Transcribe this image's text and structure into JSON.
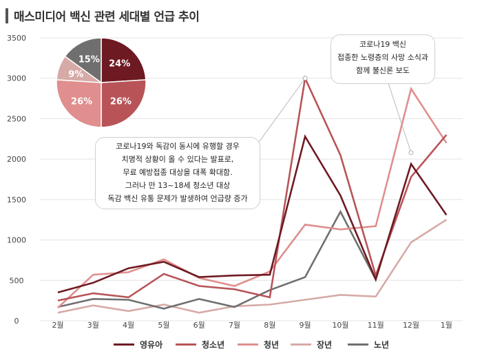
{
  "title": "매스미디어 백신 관련  세대별 언급 추이",
  "colors": {
    "영유아": "#6e1a22",
    "청소년": "#b85458",
    "청년": "#e08e8e",
    "장년": "#d6aaa7",
    "노년": "#6f6f6f"
  },
  "chart_data": {
    "type": "line",
    "categories": [
      "2월",
      "3월",
      "4월",
      "5월",
      "6월",
      "7월",
      "8월",
      "9월",
      "10월",
      "11월",
      "12월",
      "1월"
    ],
    "y_ticks": [
      "0",
      "500",
      "1000",
      "1500",
      "2000",
      "2500",
      "3000",
      "3500"
    ],
    "ylim": [
      0,
      3500
    ],
    "grid": true,
    "legend_position": "bottom",
    "series": [
      {
        "name": "영유아",
        "values": [
          350,
          470,
          650,
          730,
          540,
          560,
          570,
          2280,
          1550,
          510,
          1940,
          1310
        ]
      },
      {
        "name": "청소년",
        "values": [
          250,
          340,
          290,
          580,
          430,
          390,
          290,
          3000,
          2050,
          560,
          1780,
          2300
        ]
      },
      {
        "name": "청년",
        "values": [
          160,
          570,
          600,
          760,
          530,
          430,
          610,
          1190,
          1130,
          1170,
          2870,
          2200
        ]
      },
      {
        "name": "장년",
        "values": [
          100,
          190,
          120,
          200,
          100,
          180,
          200,
          260,
          320,
          300,
          970,
          1250
        ]
      },
      {
        "name": "노년",
        "values": [
          170,
          270,
          260,
          150,
          270,
          170,
          380,
          540,
          1350,
          510,
          null,
          null
        ]
      }
    ]
  },
  "pie": {
    "type": "pie",
    "slices": [
      {
        "label": "24%",
        "value": 24,
        "color": "#6e1a22"
      },
      {
        "label": "26%",
        "value": 26,
        "color": "#b85458"
      },
      {
        "label": "26%",
        "value": 26,
        "color": "#e08e8e"
      },
      {
        "label": "9%",
        "value": 9,
        "color": "#d6aaa7"
      },
      {
        "label": "15%",
        "value": 15,
        "color": "#6f6f6f"
      }
    ]
  },
  "callouts": {
    "c1": [
      "코로나19와 독감이 동시에 유행할 경우",
      "치명적 상황이 올 수 있다는 발표로,",
      "무료 예방접종 대상을 대폭 확대함.",
      "그러나 만 13~18세 청소년 대상",
      "독감 백신 유통 문제가 발생하여 언급량 증가"
    ],
    "c2": [
      "코로나19 백신",
      "접종한 노령층의 사망 소식과",
      "함께 불신론 보도"
    ]
  },
  "legend": [
    "영유아",
    "청소년",
    "청년",
    "장년",
    "노년"
  ]
}
